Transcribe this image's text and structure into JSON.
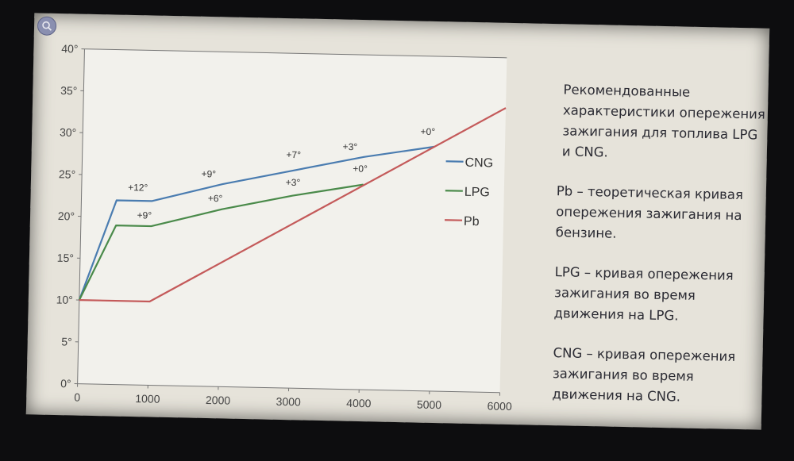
{
  "chart_data": {
    "type": "line",
    "x": [
      0,
      500,
      1000,
      2000,
      3000,
      4000,
      5000,
      6000
    ],
    "x_ticks": [
      "0",
      "1000",
      "2000",
      "3000",
      "4000",
      "5000",
      "6000"
    ],
    "y_ticks": [
      "0°",
      "5°",
      "10°",
      "15°",
      "20°",
      "25°",
      "30°",
      "35°",
      "40°"
    ],
    "xlim": [
      0,
      6000
    ],
    "ylim": [
      0,
      40
    ],
    "grid": false,
    "legend_position": "right",
    "series": [
      {
        "name": "CNG",
        "color": "#4a7cb0",
        "x": [
          0,
          500,
          1000,
          2000,
          3000,
          4000,
          5000
        ],
        "y": [
          10,
          22,
          22,
          24.2,
          26,
          27.8,
          29.2
        ]
      },
      {
        "name": "LPG",
        "color": "#4a8a4a",
        "x": [
          0,
          500,
          1000,
          2000,
          3000,
          4000
        ],
        "y": [
          10,
          19,
          19,
          21.2,
          23,
          24.5
        ]
      },
      {
        "name": "Pb",
        "color": "#c45a5a",
        "x": [
          0,
          1000,
          6000
        ],
        "y": [
          10,
          10,
          34
        ]
      }
    ],
    "annotations": [
      {
        "text": "+12°",
        "x": 800,
        "y": 23.2
      },
      {
        "text": "+9°",
        "x": 900,
        "y": 19.9
      },
      {
        "text": "+9°",
        "x": 1800,
        "y": 25
      },
      {
        "text": "+6°",
        "x": 1900,
        "y": 22.1
      },
      {
        "text": "+7°",
        "x": 3000,
        "y": 27.5
      },
      {
        "text": "+3°",
        "x": 3000,
        "y": 24.2
      },
      {
        "text": "+3°",
        "x": 3800,
        "y": 28.6
      },
      {
        "text": "+0°",
        "x": 3950,
        "y": 26
      },
      {
        "text": "+0°",
        "x": 4900,
        "y": 30.6
      }
    ]
  },
  "description": {
    "p1": "Рекомендованные характеристики опережения зажигания для топлива LPG и CNG.",
    "p2": "Pb – теоретическая кривая опережения зажигания на бензине.",
    "p3": "LPG – кривая опережения зажигания во время движения на LPG.",
    "p4": "CNG – кривая опережения зажигания во время движения на CNG."
  },
  "icons": {
    "top_left": "magnifier-icon"
  }
}
